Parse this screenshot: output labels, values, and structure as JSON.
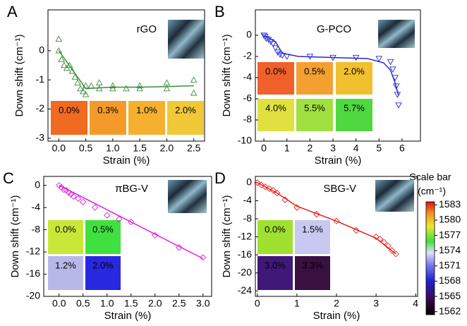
{
  "chart_data": [
    {
      "type": "scatter",
      "panel": "A",
      "xlabel": "Strain (%)",
      "ylabel": "Down shift (cm⁻¹)",
      "x": [
        0,
        0,
        0.05,
        0.1,
        0.15,
        0.2,
        0.25,
        0.3,
        0.35,
        0.4,
        0.45,
        0.5,
        0.5,
        0.6,
        0.75,
        0.75,
        1.0,
        1.0,
        1.25,
        1.5,
        1.5,
        2.0,
        2.0,
        2.5,
        2.5
      ],
      "series": [
        {
          "name": "rGO",
          "color": "#3a8c3a",
          "marker": "triangle-up",
          "values": [
            0.4,
            0,
            -0.3,
            -0.5,
            -0.6,
            -0.5,
            -0.7,
            -0.9,
            -1.1,
            -1.3,
            -1.4,
            -1.2,
            -1.5,
            -1.2,
            -1.1,
            -1.3,
            -1.2,
            -1.3,
            -1.3,
            -1.2,
            -1.3,
            -1.1,
            -1.3,
            -1.0,
            -1.45
          ]
        }
      ],
      "fit": {
        "x": [
          0,
          0.5,
          1.0,
          1.5,
          2.0,
          2.5
        ],
        "y": [
          0,
          -1.3,
          -1.25,
          -1.25,
          -1.23,
          -1.2
        ]
      },
      "xlim": [
        -0.2,
        2.7
      ],
      "ylim": [
        -3.1,
        1.4
      ],
      "xticks": [
        {
          "value": 0,
          "label": "0.0"
        },
        0.5,
        {
          "value": 1,
          "label": "1.0"
        },
        1.5,
        {
          "value": 2,
          "label": "2.0"
        },
        2.5
      ],
      "yticks": [
        0,
        -1,
        -2,
        -3
      ],
      "insets": [
        {
          "label": "0.0%",
          "color": "#f06a20"
        },
        {
          "label": "0.3%",
          "color": "#f49a2a"
        },
        {
          "label": "1.0%",
          "color": "#f5b030"
        },
        {
          "label": "2.0%",
          "color": "#f0c838"
        }
      ]
    },
    {
      "type": "scatter",
      "panel": "B",
      "xlabel": "Strain (%)",
      "ylabel": "Down shift (cm⁻¹)",
      "x": [
        0,
        0.05,
        0.1,
        0.2,
        0.3,
        0.4,
        0.5,
        0.6,
        0.7,
        0.8,
        1.0,
        2.0,
        3.0,
        4.0,
        5.0,
        5.5,
        5.6,
        5.7,
        5.75,
        5.8,
        5.85
      ],
      "series": [
        {
          "name": "G-PCO",
          "color": "#2828d0",
          "marker": "triangle-down",
          "values": [
            0,
            -0.1,
            -0.3,
            -0.4,
            -0.6,
            -0.8,
            -1.2,
            -1.6,
            -1.8,
            -1.9,
            -2.0,
            -2.0,
            -2.1,
            -2.1,
            -2.2,
            -2.5,
            -3.2,
            -4.0,
            -4.8,
            -5.6,
            -6.6
          ]
        }
      ],
      "fit": {
        "x": [
          0,
          0.5,
          0.8,
          1.5,
          3,
          4.5,
          5.2,
          5.5,
          5.7,
          5.85
        ],
        "y": [
          0,
          -0.6,
          -1.7,
          -2.0,
          -2.1,
          -2.2,
          -2.6,
          -3.3,
          -4.5,
          -5.7
        ]
      },
      "xlim": [
        -0.37,
        6.8
      ],
      "ylim": [
        -10,
        2.4
      ],
      "xticks": [
        0,
        1,
        2,
        3,
        4,
        5,
        6
      ],
      "yticks": [
        0,
        -2,
        -4,
        -6,
        -8,
        -10
      ],
      "insets": [
        {
          "label": "0.0%",
          "color": "#f0602a"
        },
        {
          "label": "0.5%",
          "color": "#f4a030"
        },
        {
          "label": "2.0%",
          "color": "#f0c030"
        },
        {
          "label": "4.0%",
          "color": "#e0e040"
        },
        {
          "label": "5.5%",
          "color": "#a0e040"
        },
        {
          "label": "5.7%",
          "color": "#50d840"
        }
      ]
    },
    {
      "type": "scatter",
      "panel": "C",
      "xlabel": "Strain (%)",
      "ylabel": "Down shift (cm⁻¹)",
      "x": [
        0,
        0.05,
        0.1,
        0.15,
        0.2,
        0.25,
        0.3,
        0.4,
        0.5,
        0.75,
        1.0,
        1.25,
        1.5,
        2.0,
        2.5,
        3.0
      ],
      "series": [
        {
          "name": "πBG-V",
          "color": "#e020e0",
          "marker": "diamond",
          "values": [
            0,
            -0.4,
            -0.8,
            -0.9,
            -1.3,
            -1.6,
            -2.0,
            -2.4,
            -3.0,
            -4.0,
            -5.4,
            -6.1,
            -6.6,
            -9.0,
            -11.2,
            -13.0
          ]
        }
      ],
      "fit": {
        "x": [
          0,
          3.0
        ],
        "y": [
          0,
          -13.2
        ]
      },
      "xlim": [
        -0.32,
        3.18
      ],
      "ylim": [
        -20,
        1.6
      ],
      "xticks": [
        {
          "value": 0,
          "label": "0.0"
        },
        0.5,
        {
          "value": 1,
          "label": "1.0"
        },
        1.5,
        {
          "value": 2,
          "label": "2.0"
        },
        2.5,
        {
          "value": 3,
          "label": "3.0"
        }
      ],
      "yticks": [
        0,
        -4,
        -8,
        -12,
        -16,
        -20
      ],
      "insets": [
        {
          "label": "0.0%",
          "color": "#c8e838"
        },
        {
          "label": "0.5%",
          "color": "#40e040"
        },
        {
          "label": "1.2%",
          "color": "#b8b8e8"
        },
        {
          "label": "2.0%",
          "color": "#2828e0"
        }
      ]
    },
    {
      "type": "scatter",
      "panel": "D",
      "xlabel": "Strain (%)",
      "ylabel": "Down shift (cm⁻¹)",
      "x": [
        0,
        0.1,
        0.2,
        0.3,
        0.4,
        0.5,
        0.7,
        1.0,
        1.5,
        2.0,
        2.5,
        3.0,
        3.1,
        3.2,
        3.3,
        3.4,
        3.5
      ],
      "series": [
        {
          "name": "SBG-V",
          "color": "#e82020",
          "marker": "diamond",
          "values": [
            0,
            -0.5,
            -0.9,
            -1.3,
            -1.7,
            -2.3,
            -3.8,
            -5.5,
            -7.0,
            -8.5,
            -10.6,
            -12.0,
            -12.5,
            -13.2,
            -14.0,
            -15.0,
            -15.8
          ]
        }
      ],
      "fit": {
        "x": [
          0,
          0.5,
          1.0,
          2.0,
          3.0,
          3.5
        ],
        "y": [
          0,
          -2.3,
          -5.2,
          -8.5,
          -12.3,
          -15.8
        ]
      },
      "xlim": [
        -0.05,
        4.05
      ],
      "ylim": [
        -25.2,
        1.4
      ],
      "xticks": [
        0,
        1,
        2,
        3,
        4
      ],
      "yticks": [
        0,
        -4,
        -8,
        -12,
        -16,
        -20,
        -24
      ],
      "insets": [
        {
          "label": "0.0%",
          "color": "#a0e030"
        },
        {
          "label": "1.5%",
          "color": "#c8c8f0"
        },
        {
          "label": "3.0%",
          "color": "#401878"
        },
        {
          "label": "3.3%",
          "color": "#3a1040"
        }
      ]
    }
  ],
  "colorbar": {
    "title": "Scale bar",
    "unit": "(cm⁻¹)",
    "lim": [
      1561.4,
      1583.6
    ],
    "ticks": [
      1583,
      1580,
      1577,
      1574,
      1571,
      1568,
      1565,
      1562
    ]
  }
}
